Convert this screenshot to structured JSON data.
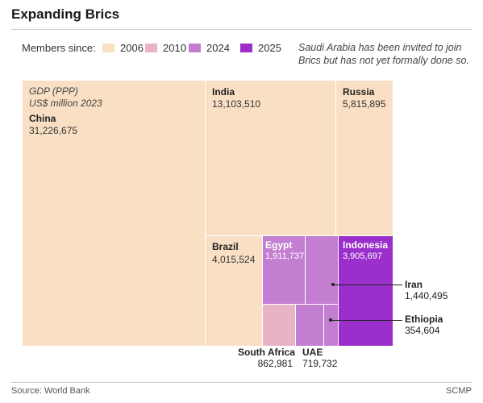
{
  "header": {
    "title": "Expanding Brics"
  },
  "legend": {
    "label": "Members since:",
    "items": [
      {
        "label": "2006",
        "color": "#f9dfc3"
      },
      {
        "label": "2010",
        "color": "#e9b3c7"
      },
      {
        "label": "2024",
        "color": "#c47ed1"
      },
      {
        "label": "2025",
        "color": "#9a2fcb"
      }
    ]
  },
  "note": "Saudi Arabia has been invited to join Brics but has not yet formally done so.",
  "caption": {
    "line1": "GDP (PPP)",
    "line2": "US$ million 2023"
  },
  "footer": {
    "source": "Source: World Bank",
    "brand": "SCMP"
  },
  "chart_data": {
    "type": "treemap",
    "measure": "GDP (PPP), US$ million 2023",
    "colors": {
      "2006": "#f9dfc3",
      "2010": "#e9b3c7",
      "2024": "#c47ed1",
      "2025": "#9a2fcb"
    },
    "nodes": [
      {
        "name": "China",
        "value": 31226675,
        "value_label": "31,226,675",
        "member_since": "2006"
      },
      {
        "name": "India",
        "value": 13103510,
        "value_label": "13,103,510",
        "member_since": "2006"
      },
      {
        "name": "Russia",
        "value": 5815895,
        "value_label": "5,815,895",
        "member_since": "2006"
      },
      {
        "name": "Brazil",
        "value": 4015524,
        "value_label": "4,015,524",
        "member_since": "2006"
      },
      {
        "name": "Egypt",
        "value": 1911737,
        "value_label": "1,911,737",
        "member_since": "2024"
      },
      {
        "name": "Indonesia",
        "value": 3905697,
        "value_label": "3,905,697",
        "member_since": "2025"
      },
      {
        "name": "Iran",
        "value": 1440495,
        "value_label": "1,440,495",
        "member_since": "2024"
      },
      {
        "name": "Ethiopia",
        "value": 354604,
        "value_label": "354,604",
        "member_since": "2024"
      },
      {
        "name": "South Africa",
        "value": 862981,
        "value_label": "862,981",
        "member_since": "2010"
      },
      {
        "name": "UAE",
        "value": 719732,
        "value_label": "719,732",
        "member_since": "2024"
      }
    ]
  }
}
